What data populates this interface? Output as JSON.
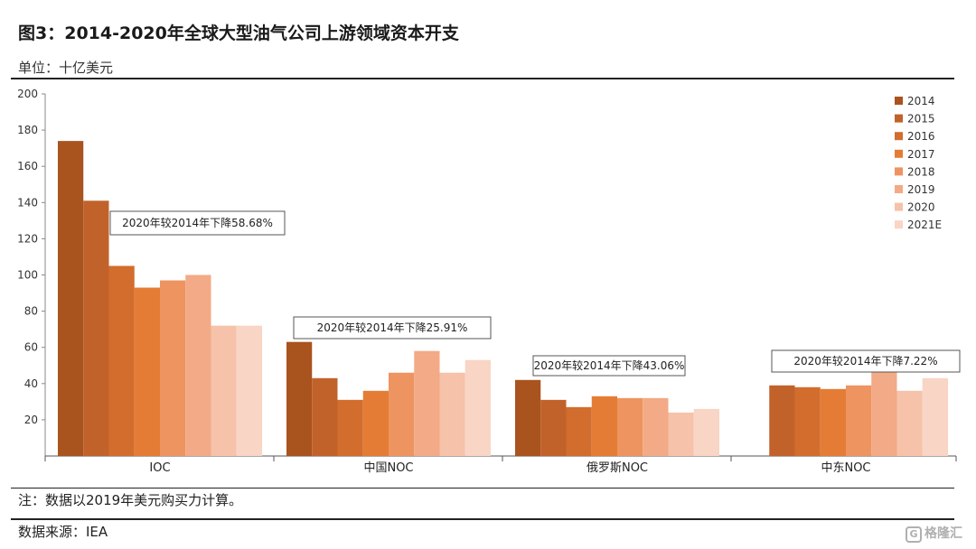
{
  "header": {
    "title": "图3：2014-2020年全球大型油气公司上游领域资本开支",
    "unit": "单位：十亿美元"
  },
  "footer": {
    "note": "注：数据以2019年美元购买力计算。",
    "source": "数据来源：IEA",
    "watermark": "格隆汇"
  },
  "colors": {
    "2014": "#A9531F",
    "2015": "#C1622A",
    "2016": "#D26D2E",
    "2017": "#E47C35",
    "2018": "#EE9460",
    "2019": "#F3AA86",
    "2020": "#F6C2AA",
    "2021E": "#F8D5C4"
  },
  "chart_data": {
    "type": "bar",
    "categories": [
      "IOC",
      "中国NOC",
      "俄罗斯NOC",
      "中东NOC"
    ],
    "series": [
      {
        "name": "2014",
        "values": [
          174,
          63,
          42,
          null
        ]
      },
      {
        "name": "2015",
        "values": [
          141,
          43,
          31,
          39
        ]
      },
      {
        "name": "2016",
        "values": [
          105,
          31,
          27,
          38
        ]
      },
      {
        "name": "2017",
        "values": [
          93,
          36,
          33,
          37
        ]
      },
      {
        "name": "2018",
        "values": [
          97,
          46,
          32,
          39
        ]
      },
      {
        "name": "2019",
        "values": [
          100,
          58,
          32,
          47
        ]
      },
      {
        "name": "2020",
        "values": [
          72,
          46,
          24,
          36
        ]
      },
      {
        "name": "2021E",
        "values": [
          72,
          53,
          26,
          43
        ]
      }
    ],
    "ylim": [
      0,
      200
    ],
    "yticks": [
      20,
      40,
      60,
      80,
      100,
      120,
      140,
      160,
      180,
      200
    ],
    "xlabel": "",
    "ylabel": "",
    "legend": "top-right",
    "grid": false,
    "annotations": [
      {
        "category": "IOC",
        "text": "2020年较2014年下降58.68%"
      },
      {
        "category": "中国NOC",
        "text": "2020年较2014年下降25.91%"
      },
      {
        "category": "俄罗斯NOC",
        "text": "2020年较2014年下降43.06%"
      },
      {
        "category": "中东NOC",
        "text": "2020年较2014年下降7.22%"
      }
    ]
  }
}
